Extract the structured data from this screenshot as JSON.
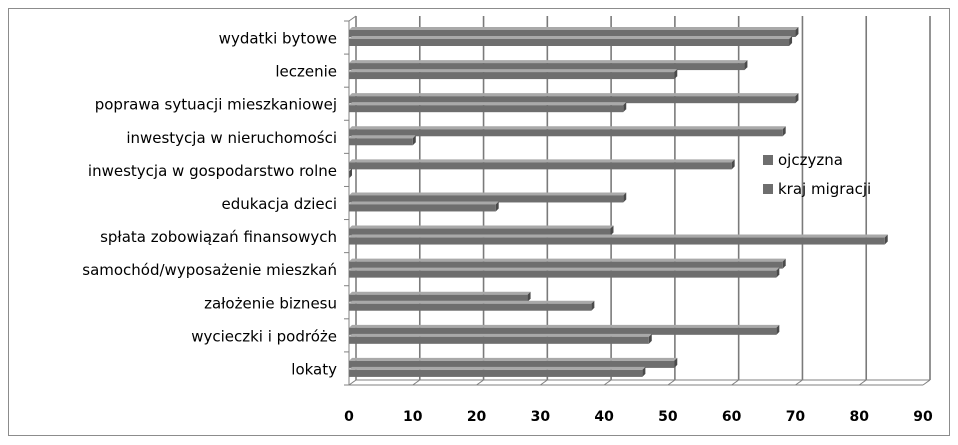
{
  "chart_data": {
    "type": "bar",
    "orientation": "horizontal",
    "categories": [
      "wydatki bytowe",
      "leczenie",
      "poprawa sytuacji mieszkaniowej",
      "inwestycja w nieruchomości",
      "inwestycja w gospodarstwo rolne",
      "edukacja dzieci",
      "spłata zobowiązań finansowych",
      "samochód/wyposażenie mieszkań",
      "założenie biznesu",
      "wycieczki i podróże",
      "lokaty"
    ],
    "series": [
      {
        "name": "ojczyzna",
        "values": [
          70,
          62,
          70,
          68,
          60,
          43,
          41,
          68,
          28,
          67,
          51
        ]
      },
      {
        "name": "kraj migracji",
        "values": [
          69,
          51,
          43,
          10,
          0,
          23,
          84,
          67,
          38,
          47,
          46
        ]
      }
    ],
    "xlim": [
      0,
      90
    ],
    "xticks": [
      "0",
      "10",
      "20",
      "30",
      "40",
      "50",
      "60",
      "70",
      "80",
      "90"
    ],
    "grid": true,
    "legend_position": "right",
    "bar_color": "#6e6e6e"
  }
}
